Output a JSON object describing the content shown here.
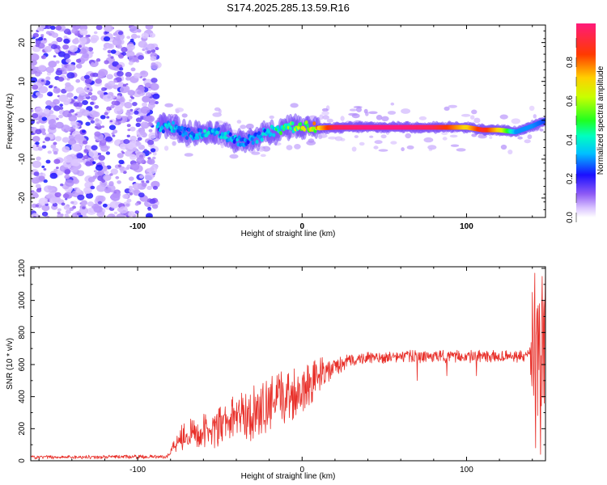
{
  "chart_data": [
    {
      "type": "heatmap",
      "title": "S174.2025.285.13.59.R16",
      "xlabel": "Height of straight line (km)",
      "ylabel": "Frequency (Hz)",
      "xlim": [
        -165,
        148
      ],
      "ylim": [
        -25,
        24.5
      ],
      "xticks": [
        -100,
        0,
        100
      ],
      "xtick_labels": [
        "-100",
        "0",
        "100"
      ],
      "yticks": [
        -20,
        -10,
        0,
        10,
        20
      ],
      "ytick_labels": [
        "-20",
        "-10",
        "0",
        "10",
        "20"
      ],
      "colorbar": {
        "label": "Normalized spectral amplitude",
        "range": [
          0,
          1
        ],
        "ticks": [
          0.0,
          0.2,
          0.4,
          0.6,
          0.8
        ],
        "tick_labels": [
          "0.0",
          "0.2",
          "0.4",
          "0.6",
          "0.8"
        ]
      },
      "noise_region": {
        "x_range": [
          -165,
          -88
        ],
        "freq_range": [
          -25,
          24.5
        ]
      },
      "ridge": {
        "x": [
          -88,
          -80,
          -70,
          -60,
          -50,
          -40,
          -30,
          -20,
          -10,
          0,
          10,
          20,
          40,
          60,
          80,
          100,
          110,
          120,
          130,
          140,
          148
        ],
        "freq": [
          -2,
          -1.5,
          -3.5,
          -3.5,
          -3,
          -5.5,
          -5,
          -3,
          -2,
          -1.5,
          -2,
          -1.8,
          -1.8,
          -1.8,
          -1.8,
          -1.8,
          -2.5,
          -2.5,
          -3,
          -1.5,
          0
        ],
        "amplitude": [
          0.3,
          0.35,
          0.3,
          0.35,
          0.35,
          0.3,
          0.3,
          0.35,
          0.5,
          0.6,
          0.7,
          0.95,
          1.0,
          1.0,
          0.95,
          0.7,
          0.9,
          0.7,
          0.3,
          0.3,
          0.25
        ]
      }
    },
    {
      "type": "line",
      "xlabel": "Height of straight line (km)",
      "ylabel": "SNR (10 * v/v)",
      "xlim": [
        -165,
        148
      ],
      "ylim": [
        0,
        1210
      ],
      "xticks": [
        -100,
        0,
        100
      ],
      "xtick_labels": [
        "-100",
        "0",
        "100"
      ],
      "yticks": [
        0,
        200,
        400,
        600,
        800,
        1000,
        1200
      ],
      "ytick_labels": [
        "0",
        "200",
        "400",
        "600",
        "800",
        "1000",
        "1200"
      ],
      "color": "#e8302a",
      "envelope": {
        "x": [
          -165,
          -82,
          -75,
          -60,
          -50,
          -40,
          -30,
          -20,
          -10,
          0,
          10,
          20,
          30,
          40,
          60,
          80,
          100,
          120,
          138,
          140,
          144,
          148
        ],
        "mean": [
          22,
          25,
          150,
          180,
          200,
          270,
          300,
          350,
          400,
          450,
          530,
          580,
          630,
          640,
          650,
          650,
          650,
          650,
          650,
          650,
          650,
          650
        ],
        "spread": [
          12,
          12,
          90,
          110,
          140,
          150,
          180,
          180,
          180,
          160,
          120,
          60,
          40,
          40,
          40,
          40,
          40,
          40,
          40,
          400,
          500,
          500
        ]
      },
      "dips": [
        {
          "x": 70,
          "value": 500
        },
        {
          "x": 88,
          "value": 530
        },
        {
          "x": 106,
          "value": 530
        },
        {
          "x": 140,
          "value": 50
        },
        {
          "x": 142,
          "value": 80
        },
        {
          "x": 145,
          "value": 40
        },
        {
          "x": 148,
          "value": 150
        }
      ],
      "spikes": [
        {
          "x": 140,
          "value": 1050
        },
        {
          "x": 141.5,
          "value": 1170
        },
        {
          "x": 143,
          "value": 950
        },
        {
          "x": 146,
          "value": 1150
        },
        {
          "x": 148,
          "value": 1200
        }
      ]
    }
  ]
}
